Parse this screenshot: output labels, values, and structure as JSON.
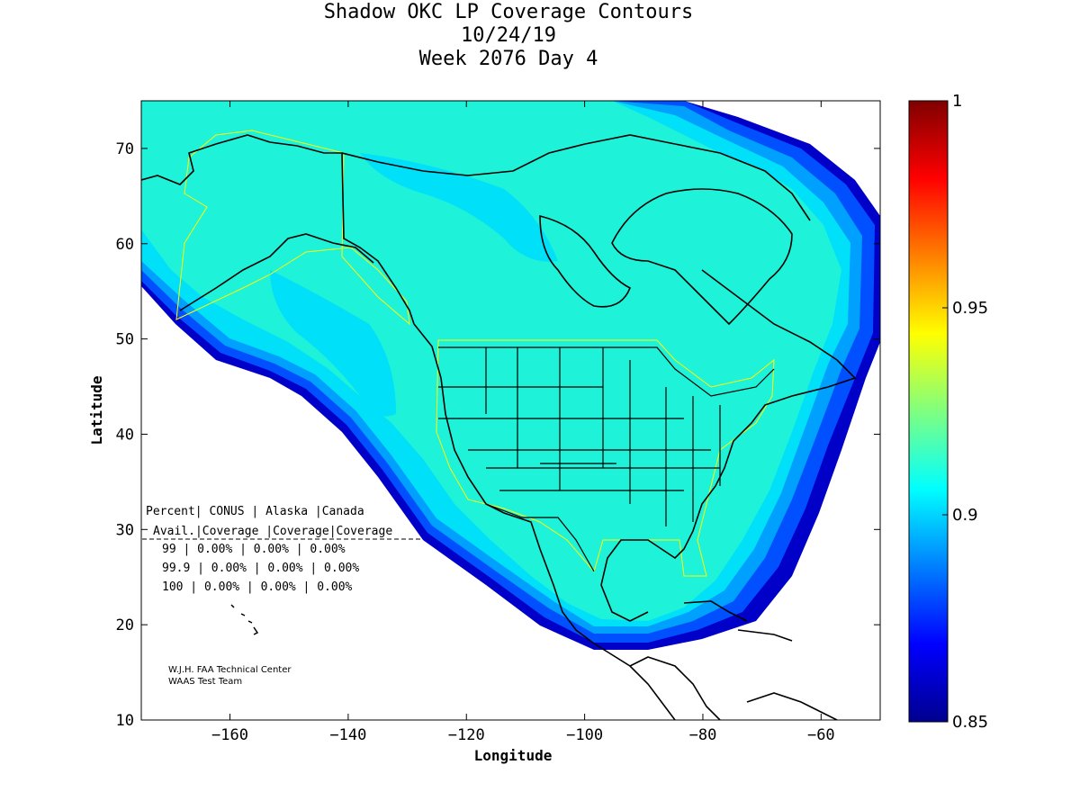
{
  "title_lines": [
    "Shadow OKC LP Coverage Contours",
    "10/24/19",
    "Week 2076 Day 4"
  ],
  "axes": {
    "xlabel": "Longitude",
    "ylabel": "Latitude",
    "xlim": [
      -175,
      -50
    ],
    "ylim": [
      10,
      75
    ],
    "xticks": [
      -160,
      -140,
      -120,
      -100,
      -80,
      -60
    ],
    "yticks": [
      10,
      20,
      30,
      40,
      50,
      60,
      70
    ]
  },
  "colorbar": {
    "min": 0.85,
    "max": 1,
    "ticks": [
      0.85,
      0.9,
      0.95,
      1
    ],
    "tick_labels": [
      "0.85",
      "0.9",
      "0.95",
      "1"
    ],
    "colormap": "jet"
  },
  "coverage_table": {
    "header1": [
      "Percent",
      "CONUS",
      "Alaska",
      "Canada"
    ],
    "header2": [
      "Avail.",
      "Coverage",
      "Coverage",
      "Coverage"
    ],
    "rows": [
      [
        "99",
        "0.00%",
        "0.00%",
        "0.00%"
      ],
      [
        "99.9",
        "0.00%",
        "0.00%",
        "0.00%"
      ],
      [
        "100",
        "0.00%",
        "0.00%",
        "0.00%"
      ]
    ]
  },
  "credits": [
    "W.J.H. FAA Technical Center",
    "WAAS Test Team"
  ],
  "colors": {
    "coverage_fill": "#1ef2d8",
    "blue_band": "#00b4ff",
    "boundary": "#ffff00"
  }
}
